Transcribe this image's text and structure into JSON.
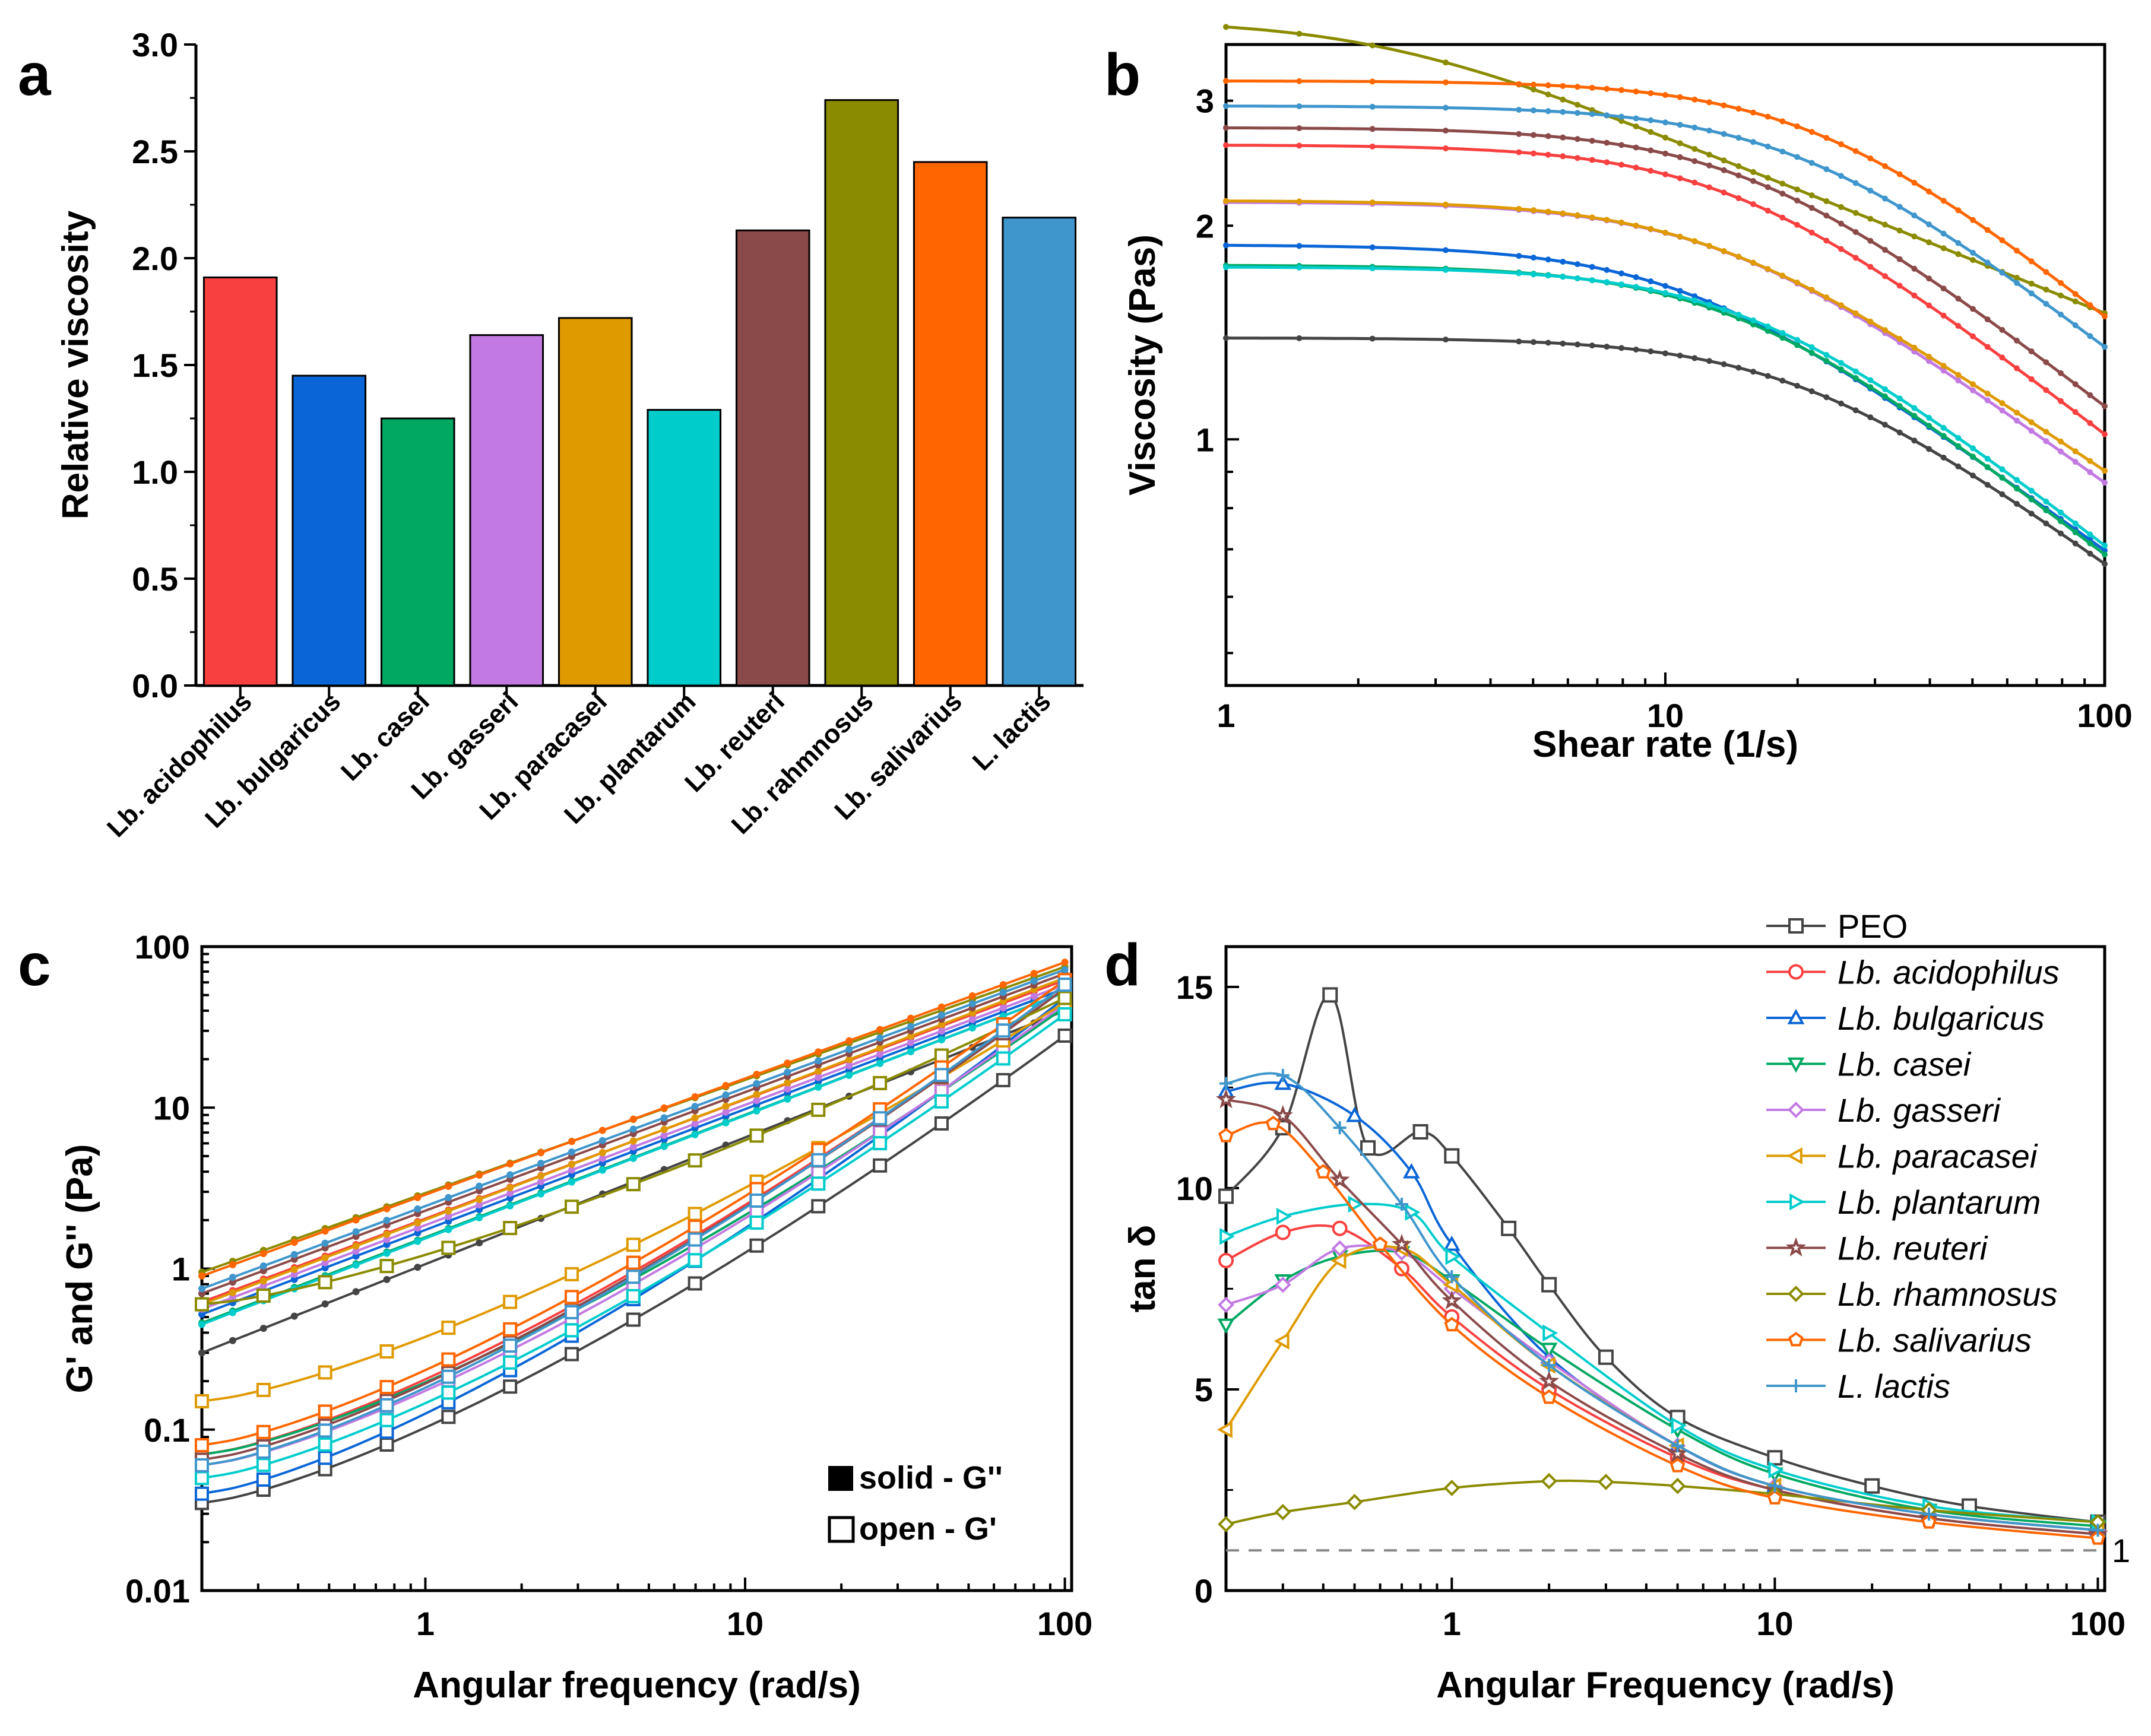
{
  "panels": {
    "a": "a",
    "b": "b",
    "c": "c",
    "d": "d"
  },
  "chart_data": [
    {
      "id": "a",
      "type": "bar",
      "title": "",
      "xlabel": "",
      "ylabel": "Relative viscosity",
      "ylim": [
        0,
        3.0
      ],
      "yticks": [
        "0.0",
        "0.5",
        "1.0",
        "1.5",
        "2.0",
        "2.5",
        "3.0"
      ],
      "categories": [
        "Lb. acidophilus",
        "Lb. bulgaricus",
        "Lb. casei",
        "Lb. gasseri",
        "Lb. paracasei",
        "Lb. plantarum",
        "Lb. reuteri",
        "Lb. rahmnosus",
        "Lb. salivarius",
        "L. lactis"
      ],
      "values": [
        1.91,
        1.45,
        1.25,
        1.64,
        1.72,
        1.29,
        2.13,
        2.74,
        2.45,
        2.19
      ],
      "colors": [
        "#f94040",
        "#0a66d6",
        "#00a862",
        "#c27ae2",
        "#df9a00",
        "#00cccc",
        "#8b4a4a",
        "#8b8b00",
        "#ff6600",
        "#3f96cc"
      ]
    },
    {
      "id": "b",
      "type": "line",
      "xscale": "log",
      "yscale": "log",
      "xlabel": "Shear rate (1/s)",
      "ylabel": "Viscosity (Pas)",
      "xlim": [
        1,
        100
      ],
      "ylim": [
        0.45,
        3.6
      ],
      "xticks": [
        "1",
        "10",
        "100"
      ],
      "yticks": [
        "1",
        "2",
        "3"
      ],
      "series": [
        {
          "name": "PEO",
          "color": "#444444",
          "eta0": 1.39,
          "lambda": 0.05,
          "n": 0.55
        },
        {
          "name": "Lb. acidophilus",
          "color": "#f94040",
          "eta0": 2.6,
          "lambda": 0.07,
          "n": 0.52
        },
        {
          "name": "Lb. bulgaricus",
          "color": "#0a66d6",
          "eta0": 1.88,
          "lambda": 0.09,
          "n": 0.55
        },
        {
          "name": "Lb. casei",
          "color": "#00a862",
          "eta0": 1.76,
          "lambda": 0.07,
          "n": 0.52
        },
        {
          "name": "Lb. gasseri",
          "color": "#c27ae2",
          "eta0": 2.16,
          "lambda": 0.075,
          "n": 0.55
        },
        {
          "name": "Lb. paracasei",
          "color": "#df9a00",
          "eta0": 2.17,
          "lambda": 0.08,
          "n": 0.58
        },
        {
          "name": "Lb. plantarum",
          "color": "#00cccc",
          "eta0": 1.75,
          "lambda": 0.065,
          "n": 0.52
        },
        {
          "name": "Lb. reuteri",
          "color": "#8b4a4a",
          "eta0": 2.75,
          "lambda": 0.065,
          "n": 0.52
        },
        {
          "name": "Lb. rhamnosus",
          "color": "#8b8b00",
          "eta0": 3.9,
          "lambda": 0.45,
          "n": 0.75
        },
        {
          "name": "Lb. salivarius",
          "color": "#ff6600",
          "eta0": 3.2,
          "lambda": 0.045,
          "n": 0.5
        },
        {
          "name": "L. lactis",
          "color": "#3f96cc",
          "eta0": 2.95,
          "lambda": 0.05,
          "n": 0.52
        }
      ]
    },
    {
      "id": "c",
      "type": "line",
      "xscale": "log",
      "yscale": "log",
      "xlabel": "Angular frequency (rad/s)",
      "ylabel": "G' and G'' (Pa)",
      "xlim": [
        0.2,
        105
      ],
      "ylim": [
        0.01,
        100
      ],
      "xticks": [
        "1",
        "10",
        "100"
      ],
      "yticks": [
        "0.01",
        "0.1",
        "1",
        "10",
        "100"
      ],
      "legend": [
        "solid - G''",
        "open - G'"
      ],
      "series": [
        {
          "name": "PEO",
          "color": "#444444",
          "Gpp": [
            0.3,
            40
          ],
          "Gp": [
            0.035,
            28
          ]
        },
        {
          "name": "Lb. acidophilus",
          "color": "#f94040",
          "Gpp": [
            0.62,
            62
          ],
          "Gp": [
            0.07,
            55
          ]
        },
        {
          "name": "Lb. bulgaricus",
          "color": "#0a66d6",
          "Gpp": [
            0.52,
            55
          ],
          "Gp": [
            0.04,
            48
          ]
        },
        {
          "name": "Lb. casei",
          "color": "#00a862",
          "Gpp": [
            0.46,
            52
          ],
          "Gp": [
            0.07,
            42
          ]
        },
        {
          "name": "Lb. gasseri",
          "color": "#c27ae2",
          "Gpp": [
            0.56,
            58
          ],
          "Gp": [
            0.06,
            44
          ]
        },
        {
          "name": "Lb. paracasei",
          "color": "#df9a00",
          "Gpp": [
            0.6,
            64
          ],
          "Gp": [
            0.15,
            45
          ]
        },
        {
          "name": "Lb. plantarum",
          "color": "#00cccc",
          "Gpp": [
            0.45,
            52
          ],
          "Gp": [
            0.05,
            38
          ]
        },
        {
          "name": "Lb. reuteri",
          "color": "#8b4a4a",
          "Gpp": [
            0.7,
            68
          ],
          "Gp": [
            0.065,
            55
          ]
        },
        {
          "name": "Lb. rhamnosus",
          "color": "#8b8b00",
          "Gpp": [
            0.95,
            75
          ],
          "Gp": [
            0.6,
            48
          ]
        },
        {
          "name": "Lb. salivarius",
          "color": "#ff6600",
          "Gpp": [
            0.9,
            80
          ],
          "Gp": [
            0.08,
            62
          ]
        },
        {
          "name": "L. lactis",
          "color": "#3f96cc",
          "Gpp": [
            0.75,
            72
          ],
          "Gp": [
            0.06,
            58
          ]
        }
      ]
    },
    {
      "id": "d",
      "type": "line",
      "xscale": "log",
      "xlabel": "Angular Frequency (rad/s)",
      "ylabel": "tan δ",
      "xlim": [
        0.2,
        105
      ],
      "ylim": [
        0,
        16
      ],
      "xticks": [
        "1",
        "10",
        "100"
      ],
      "yticks": [
        "0",
        "5",
        "10",
        "15"
      ],
      "reference_line": {
        "y": 1,
        "label": "1"
      },
      "series": [
        {
          "name": "PEO",
          "color": "#444444",
          "marker": "square",
          "x": [
            0.2,
            0.3,
            0.42,
            0.55,
            0.8,
            1.0,
            1.5,
            2.0,
            3.0,
            5.0,
            10,
            20,
            40,
            100
          ],
          "y": [
            9.8,
            11.5,
            14.8,
            11.0,
            11.4,
            10.8,
            9.0,
            7.6,
            5.8,
            4.3,
            3.3,
            2.6,
            2.1,
            1.7
          ]
        },
        {
          "name": "Lb. acidophilus",
          "color": "#f94040",
          "marker": "circle",
          "x": [
            0.2,
            0.3,
            0.45,
            0.7,
            1.0,
            2.0,
            5.0,
            10,
            30,
            100
          ],
          "y": [
            8.2,
            8.9,
            9.0,
            8.0,
            6.8,
            5.0,
            3.3,
            2.5,
            1.8,
            1.4
          ]
        },
        {
          "name": "Lb. bulgaricus",
          "color": "#0a66d6",
          "marker": "triangle-up",
          "x": [
            0.2,
            0.3,
            0.5,
            0.75,
            1.0,
            2.0,
            5.0,
            10,
            30,
            100
          ],
          "y": [
            12.4,
            12.6,
            11.8,
            10.4,
            8.6,
            5.8,
            3.6,
            2.6,
            1.9,
            1.5
          ]
        },
        {
          "name": "Lb. casei",
          "color": "#00a862",
          "marker": "triangle-down",
          "x": [
            0.2,
            0.3,
            0.45,
            0.7,
            1.0,
            2.0,
            5.0,
            10,
            30,
            100
          ],
          "y": [
            6.6,
            7.7,
            8.3,
            8.4,
            7.7,
            6.0,
            4.0,
            2.9,
            2.0,
            1.6
          ]
        },
        {
          "name": "Lb. gasseri",
          "color": "#c27ae2",
          "marker": "diamond",
          "x": [
            0.2,
            0.3,
            0.45,
            0.7,
            1.0,
            2.0,
            5.0,
            10,
            30,
            100
          ],
          "y": [
            7.1,
            7.6,
            8.5,
            8.4,
            7.5,
            5.7,
            3.6,
            2.6,
            1.9,
            1.5
          ]
        },
        {
          "name": "Lb. paracasei",
          "color": "#df9a00",
          "marker": "triangle-left",
          "x": [
            0.2,
            0.3,
            0.45,
            0.7,
            1.0,
            2.0,
            5.0,
            10,
            30,
            100
          ],
          "y": [
            4.0,
            6.2,
            8.2,
            8.5,
            7.6,
            5.6,
            3.6,
            2.6,
            1.9,
            1.5
          ]
        },
        {
          "name": "Lb. plantarum",
          "color": "#00cccc",
          "marker": "triangle-right",
          "x": [
            0.2,
            0.3,
            0.5,
            0.75,
            1.0,
            2.0,
            5.0,
            10,
            30,
            100
          ],
          "y": [
            8.8,
            9.3,
            9.6,
            9.4,
            8.3,
            6.4,
            4.1,
            3.0,
            2.1,
            1.7
          ]
        },
        {
          "name": "Lb. reuteri",
          "color": "#8b4a4a",
          "marker": "star",
          "x": [
            0.2,
            0.3,
            0.45,
            0.7,
            1.0,
            2.0,
            5.0,
            10,
            30,
            100
          ],
          "y": [
            12.2,
            11.8,
            10.2,
            8.6,
            7.2,
            5.2,
            3.4,
            2.5,
            1.8,
            1.4
          ]
        },
        {
          "name": "Lb. rhamnosus",
          "color": "#8b8b00",
          "marker": "diamond",
          "x": [
            0.2,
            0.3,
            0.5,
            1.0,
            2.0,
            3.0,
            5.0,
            10,
            30,
            100
          ],
          "y": [
            1.65,
            1.95,
            2.2,
            2.55,
            2.72,
            2.7,
            2.6,
            2.4,
            2.0,
            1.7
          ]
        },
        {
          "name": "Lb. salivarius",
          "color": "#ff6600",
          "marker": "pentagon",
          "x": [
            0.2,
            0.28,
            0.4,
            0.6,
            1.0,
            2.0,
            5.0,
            10,
            30,
            100
          ],
          "y": [
            11.3,
            11.6,
            10.4,
            8.6,
            6.6,
            4.8,
            3.1,
            2.3,
            1.7,
            1.3
          ]
        },
        {
          "name": "L. lactis",
          "color": "#3f96cc",
          "marker": "plus",
          "x": [
            0.2,
            0.3,
            0.45,
            0.7,
            1.0,
            2.0,
            5.0,
            10,
            30,
            100
          ],
          "y": [
            12.6,
            12.8,
            11.5,
            9.6,
            7.8,
            5.6,
            3.6,
            2.6,
            1.9,
            1.5
          ]
        }
      ]
    }
  ]
}
